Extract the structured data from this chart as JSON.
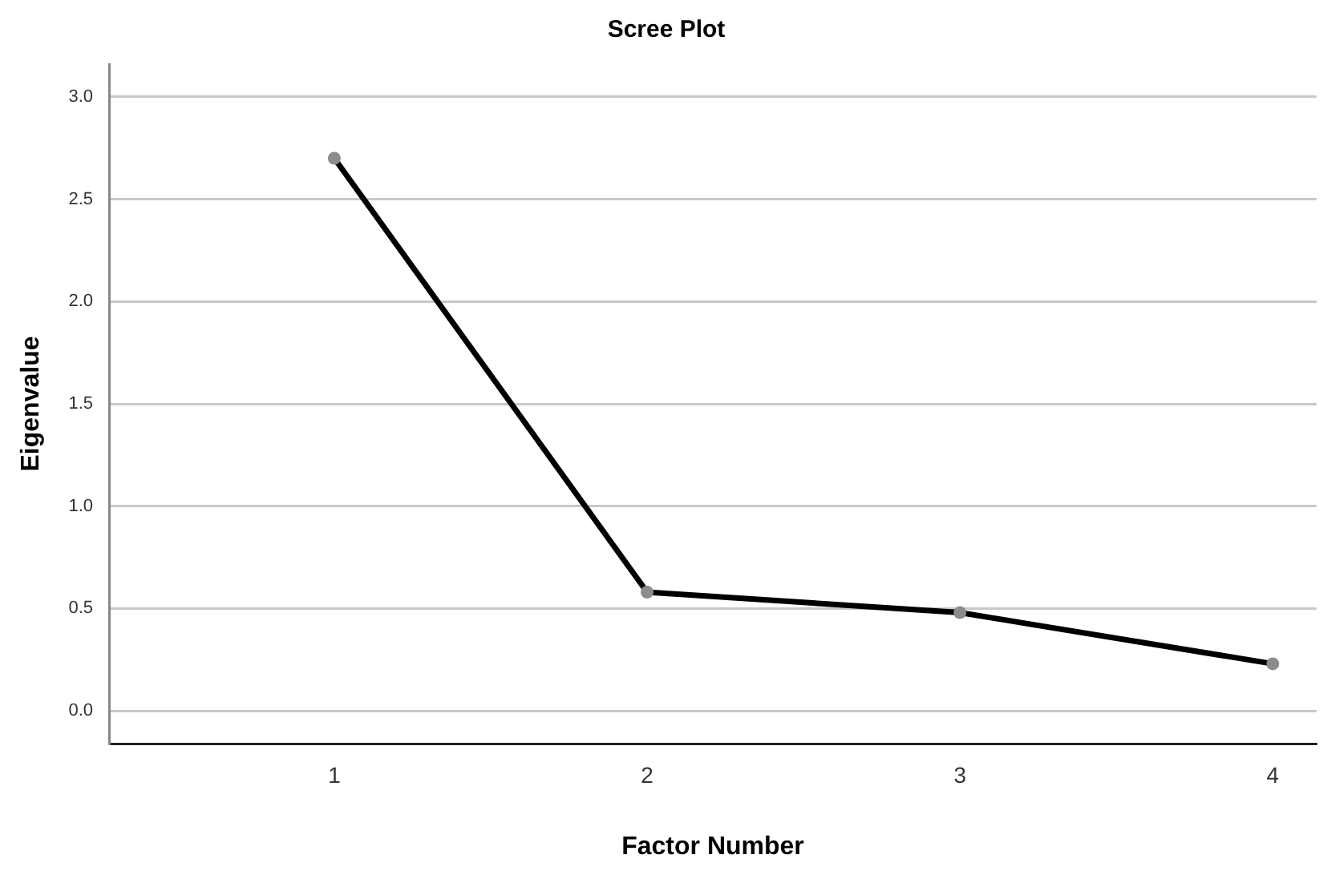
{
  "chart_data": {
    "type": "line",
    "title": "Scree Plot",
    "xlabel": "Factor Number",
    "ylabel": "Eigenvalue",
    "x": [
      1,
      2,
      3,
      4
    ],
    "series": [
      {
        "color": "#000000",
        "values": [
          2.7,
          0.58,
          0.48,
          0.23
        ]
      }
    ],
    "xlim": [
      0.28,
      4.14
    ],
    "xticks": [
      1,
      2,
      3,
      4
    ],
    "ylim": [
      -0.16,
      3.16
    ],
    "yticks": [
      {
        "value": 0,
        "label": "0.0"
      },
      {
        "value": 0.5,
        "label": "0.5"
      },
      {
        "value": 1,
        "label": "1.0"
      },
      {
        "value": 1.5,
        "label": "1.5"
      },
      {
        "value": 2,
        "label": "2.0"
      },
      {
        "value": 2.5,
        "label": "2.5"
      },
      {
        "value": 3,
        "label": "3.0"
      }
    ],
    "grid": "y",
    "legend": false,
    "marker": "circle",
    "line_style": "solid"
  }
}
